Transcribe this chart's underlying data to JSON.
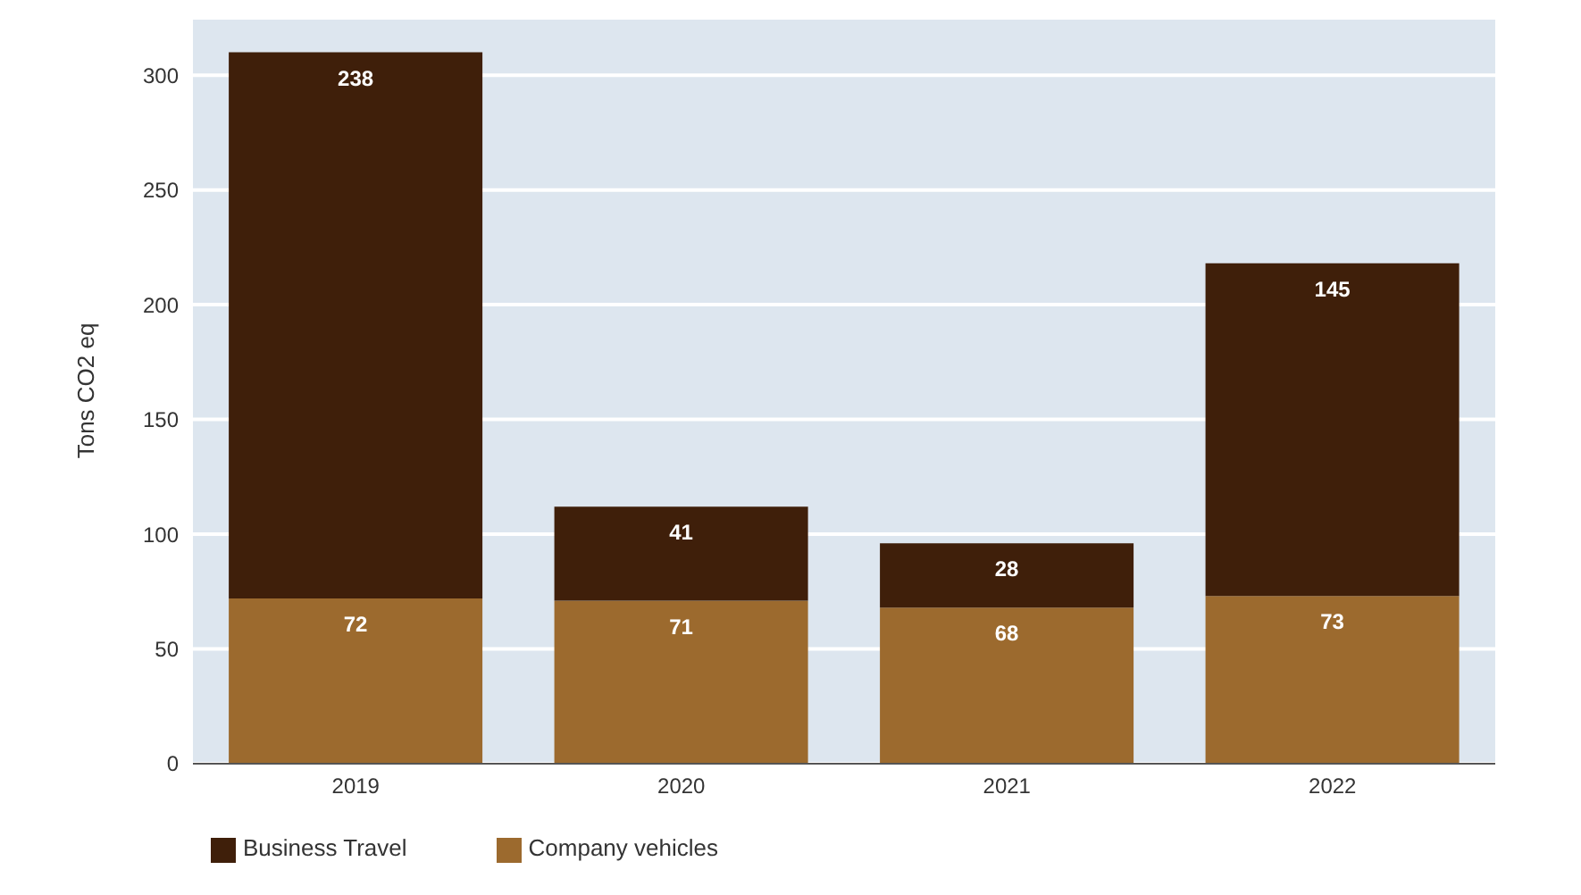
{
  "chart_data": {
    "type": "bar",
    "stacked": true,
    "ylabel": "Tons CO2 eq",
    "categories": [
      "2019",
      "2020",
      "2021",
      "2022"
    ],
    "series": [
      {
        "name": "Company vehicles",
        "color": "#9c6a2e",
        "values": [
          72,
          71,
          68,
          73
        ]
      },
      {
        "name": "Business Travel",
        "color": "#3f1f0a",
        "values": [
          238,
          41,
          28,
          145
        ]
      }
    ],
    "ylim": [
      0,
      325
    ],
    "yticks": [
      0,
      50,
      100,
      150,
      200,
      250,
      300
    ],
    "grid": "y",
    "legend": "bottom left",
    "data_labels": true
  }
}
